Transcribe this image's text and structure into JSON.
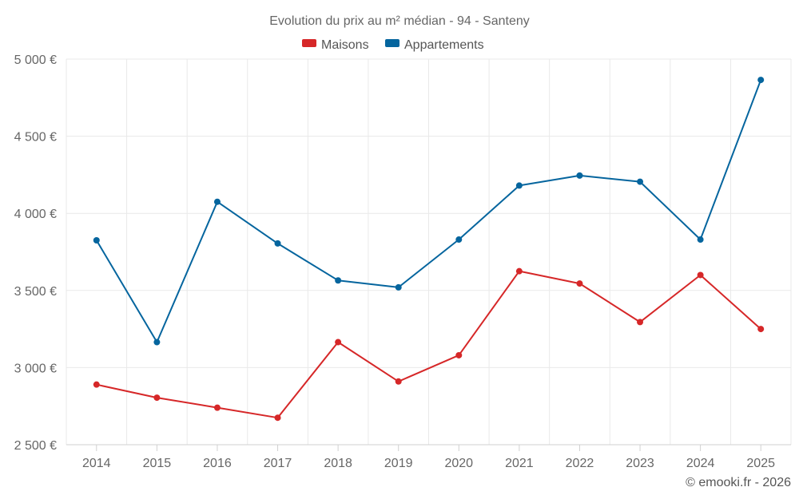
{
  "chart_data": {
    "type": "line",
    "title": "Evolution du prix au m² médian - 94 - Santeny",
    "xlabel": "",
    "ylabel": "",
    "categories": [
      "2014",
      "2015",
      "2016",
      "2017",
      "2018",
      "2019",
      "2020",
      "2021",
      "2022",
      "2023",
      "2024",
      "2025"
    ],
    "ylim": [
      2500,
      5000
    ],
    "yticks": [
      2500,
      3000,
      3500,
      4000,
      4500,
      5000
    ],
    "ytick_labels": [
      "2 500 €",
      "3 000 €",
      "3 500 €",
      "4 000 €",
      "4 500 €",
      "5 000 €"
    ],
    "grid": true,
    "legend_position": "top-center",
    "series": [
      {
        "name": "Maisons",
        "color": "#d62728",
        "values": [
          2890,
          2805,
          2740,
          2675,
          3165,
          2910,
          3080,
          3625,
          3545,
          3295,
          3600,
          3250
        ]
      },
      {
        "name": "Appartements",
        "color": "#05659e",
        "values": [
          3825,
          3165,
          4075,
          3805,
          3565,
          3520,
          3830,
          4180,
          4245,
          4205,
          3830,
          4865
        ]
      }
    ],
    "credit": "© emooki.fr - 2026"
  }
}
